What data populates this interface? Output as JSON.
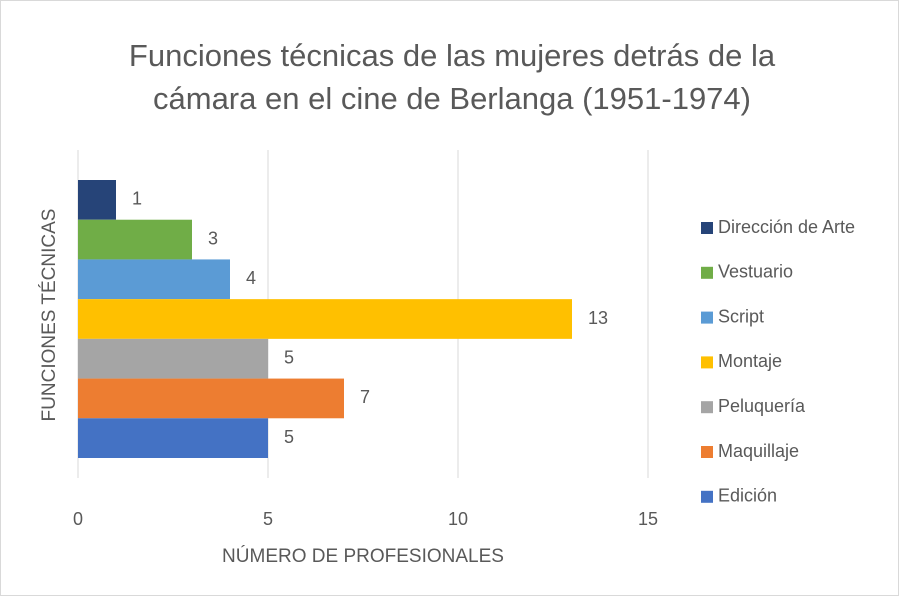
{
  "chart_data": {
    "type": "bar",
    "orientation": "horizontal",
    "title": [
      "Funciones técnicas de las mujeres detrás de la",
      "cámara en el cine de Berlanga (1951-1974)"
    ],
    "xlabel": "NÚMERO DE PROFESIONALES",
    "ylabel": "FUNCIONES TÉCNICAS",
    "categories": [
      null
    ],
    "series": [
      {
        "name": "Dirección de Arte",
        "color": "#264478",
        "values": [
          1
        ]
      },
      {
        "name": "Vestuario",
        "color": "#70ad47",
        "values": [
          3
        ]
      },
      {
        "name": "Script",
        "color": "#5b9bd5",
        "values": [
          4
        ]
      },
      {
        "name": "Montaje",
        "color": "#ffc000",
        "values": [
          13
        ]
      },
      {
        "name": "Peluquería",
        "color": "#a5a5a5",
        "values": [
          5
        ]
      },
      {
        "name": "Maquillaje",
        "color": "#ed7d31",
        "values": [
          7
        ]
      },
      {
        "name": "Edición",
        "color": "#4472c4",
        "values": [
          5
        ]
      }
    ],
    "xlim": [
      0,
      15
    ],
    "xticks": [
      0,
      5,
      10,
      15
    ],
    "grid": true,
    "legend": "right"
  }
}
